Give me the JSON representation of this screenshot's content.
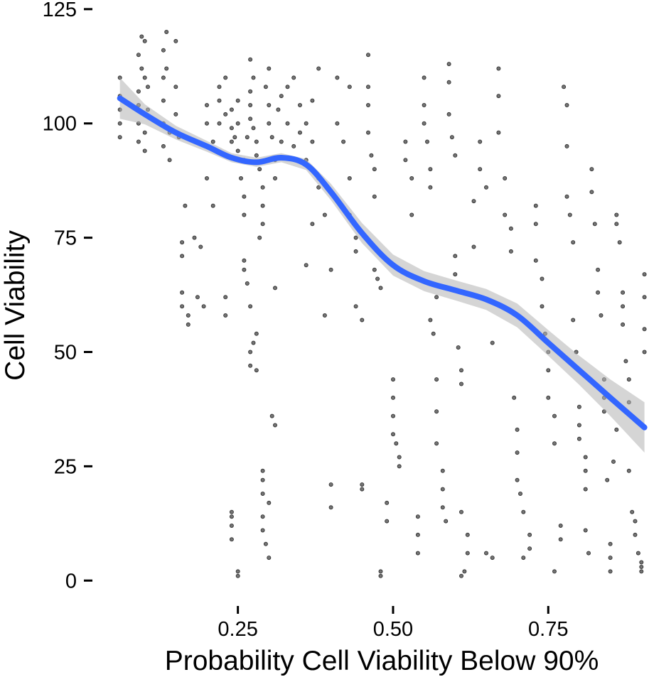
{
  "chart_data": {
    "type": "scatter",
    "xlabel": "Probability Cell Viability Below 90%",
    "ylabel": "Cell Viability",
    "xlim": [
      0.05,
      0.91
    ],
    "ylim": [
      -4,
      127
    ],
    "x_ticks": [
      {
        "value": 0.25,
        "label": "0.25"
      },
      {
        "value": 0.5,
        "label": "0.50"
      },
      {
        "value": 0.75,
        "label": "0.75"
      }
    ],
    "y_ticks": [
      {
        "value": 0,
        "label": "0"
      },
      {
        "value": 25,
        "label": "25"
      },
      {
        "value": 50,
        "label": "50"
      },
      {
        "value": 75,
        "label": "75"
      },
      {
        "value": 100,
        "label": "100"
      },
      {
        "value": 125,
        "label": "125"
      }
    ],
    "grid": false,
    "point_color": "#000000",
    "smooth_color": "#3366ff",
    "band_color": "#b3b3b3",
    "smooth": {
      "x": [
        0.06,
        0.1,
        0.15,
        0.2,
        0.24,
        0.28,
        0.32,
        0.36,
        0.4,
        0.45,
        0.5,
        0.55,
        0.6,
        0.65,
        0.7,
        0.75,
        0.8,
        0.85,
        0.905
      ],
      "y": [
        105.5,
        102.0,
        98.0,
        95.0,
        92.5,
        91.5,
        92.5,
        91.0,
        85.0,
        76.0,
        69.0,
        65.5,
        63.5,
        61.5,
        58.0,
        52.0,
        46.0,
        40.0,
        33.5
      ],
      "band_half_width": [
        4.5,
        2.2,
        1.5,
        1.2,
        1.0,
        1.0,
        1.0,
        1.2,
        1.8,
        2.2,
        2.3,
        2.2,
        2.2,
        2.3,
        2.6,
        2.8,
        3.2,
        4.0,
        5.5
      ]
    },
    "points": [
      [
        0.06,
        97
      ],
      [
        0.06,
        100
      ],
      [
        0.06,
        103
      ],
      [
        0.06,
        106
      ],
      [
        0.06,
        110
      ],
      [
        0.09,
        100
      ],
      [
        0.09,
        104
      ],
      [
        0.09,
        107
      ],
      [
        0.09,
        96
      ],
      [
        0.09,
        115
      ],
      [
        0.095,
        119
      ],
      [
        0.095,
        112
      ],
      [
        0.1,
        118
      ],
      [
        0.1,
        110
      ],
      [
        0.1,
        98
      ],
      [
        0.1,
        94
      ],
      [
        0.105,
        108
      ],
      [
        0.105,
        103
      ],
      [
        0.13,
        116
      ],
      [
        0.13,
        110
      ],
      [
        0.13,
        105
      ],
      [
        0.13,
        100
      ],
      [
        0.13,
        95
      ],
      [
        0.135,
        120
      ],
      [
        0.135,
        112
      ],
      [
        0.14,
        98
      ],
      [
        0.14,
        92
      ],
      [
        0.15,
        118
      ],
      [
        0.15,
        108
      ],
      [
        0.15,
        102
      ],
      [
        0.155,
        97
      ],
      [
        0.16,
        74
      ],
      [
        0.16,
        71
      ],
      [
        0.16,
        63
      ],
      [
        0.16,
        60
      ],
      [
        0.165,
        82
      ],
      [
        0.17,
        56
      ],
      [
        0.17,
        58
      ],
      [
        0.18,
        75
      ],
      [
        0.185,
        62
      ],
      [
        0.19,
        73
      ],
      [
        0.195,
        60
      ],
      [
        0.2,
        100
      ],
      [
        0.2,
        104
      ],
      [
        0.2,
        88
      ],
      [
        0.21,
        82
      ],
      [
        0.21,
        96
      ],
      [
        0.22,
        100
      ],
      [
        0.22,
        105
      ],
      [
        0.22,
        108
      ],
      [
        0.23,
        110
      ],
      [
        0.23,
        102
      ],
      [
        0.23,
        93
      ],
      [
        0.24,
        96
      ],
      [
        0.24,
        99
      ],
      [
        0.24,
        103
      ],
      [
        0.245,
        97
      ],
      [
        0.25,
        100
      ],
      [
        0.25,
        105
      ],
      [
        0.25,
        94
      ],
      [
        0.255,
        88
      ],
      [
        0.26,
        84
      ],
      [
        0.26,
        80
      ],
      [
        0.26,
        92
      ],
      [
        0.265,
        97
      ],
      [
        0.27,
        101
      ],
      [
        0.27,
        104
      ],
      [
        0.27,
        107
      ],
      [
        0.27,
        114
      ],
      [
        0.275,
        110
      ],
      [
        0.275,
        99
      ],
      [
        0.28,
        96
      ],
      [
        0.28,
        93
      ],
      [
        0.285,
        90
      ],
      [
        0.29,
        86
      ],
      [
        0.29,
        82
      ],
      [
        0.29,
        78
      ],
      [
        0.295,
        108
      ],
      [
        0.3,
        112
      ],
      [
        0.3,
        104
      ],
      [
        0.3,
        100
      ],
      [
        0.305,
        97
      ],
      [
        0.31,
        92
      ],
      [
        0.31,
        88
      ],
      [
        0.315,
        103
      ],
      [
        0.32,
        106
      ],
      [
        0.32,
        96
      ],
      [
        0.33,
        100
      ],
      [
        0.33,
        108
      ],
      [
        0.34,
        110
      ],
      [
        0.34,
        95
      ],
      [
        0.35,
        98
      ],
      [
        0.35,
        104
      ],
      [
        0.36,
        92
      ],
      [
        0.36,
        100
      ],
      [
        0.37,
        96
      ],
      [
        0.37,
        105
      ],
      [
        0.38,
        112
      ],
      [
        0.38,
        88
      ],
      [
        0.23,
        62
      ],
      [
        0.23,
        58
      ],
      [
        0.24,
        14
      ],
      [
        0.24,
        12
      ],
      [
        0.24,
        15
      ],
      [
        0.24,
        9
      ],
      [
        0.25,
        2
      ],
      [
        0.25,
        1
      ],
      [
        0.26,
        70
      ],
      [
        0.26,
        68
      ],
      [
        0.265,
        65
      ],
      [
        0.27,
        60
      ],
      [
        0.27,
        50
      ],
      [
        0.27,
        47
      ],
      [
        0.275,
        52
      ],
      [
        0.28,
        46
      ],
      [
        0.28,
        54
      ],
      [
        0.285,
        75
      ],
      [
        0.29,
        24
      ],
      [
        0.29,
        22
      ],
      [
        0.29,
        19
      ],
      [
        0.29,
        14
      ],
      [
        0.29,
        11
      ],
      [
        0.295,
        8
      ],
      [
        0.3,
        5
      ],
      [
        0.3,
        17
      ],
      [
        0.305,
        36
      ],
      [
        0.31,
        34
      ],
      [
        0.31,
        64
      ],
      [
        0.36,
        69
      ],
      [
        0.37,
        78
      ],
      [
        0.38,
        86
      ],
      [
        0.39,
        80
      ],
      [
        0.39,
        58
      ],
      [
        0.4,
        68
      ],
      [
        0.4,
        16
      ],
      [
        0.4,
        21
      ],
      [
        0.41,
        110
      ],
      [
        0.41,
        100
      ],
      [
        0.42,
        96
      ],
      [
        0.43,
        108
      ],
      [
        0.43,
        88
      ],
      [
        0.43,
        80
      ],
      [
        0.44,
        75
      ],
      [
        0.44,
        72
      ],
      [
        0.44,
        60
      ],
      [
        0.45,
        20
      ],
      [
        0.45,
        21
      ],
      [
        0.45,
        57
      ],
      [
        0.46,
        115
      ],
      [
        0.46,
        108
      ],
      [
        0.46,
        104
      ],
      [
        0.46,
        98
      ],
      [
        0.465,
        93
      ],
      [
        0.47,
        90
      ],
      [
        0.47,
        84
      ],
      [
        0.47,
        68
      ],
      [
        0.475,
        66
      ],
      [
        0.48,
        64
      ],
      [
        0.48,
        2
      ],
      [
        0.48,
        1
      ],
      [
        0.49,
        13
      ],
      [
        0.49,
        17
      ],
      [
        0.5,
        44
      ],
      [
        0.5,
        40
      ],
      [
        0.5,
        36
      ],
      [
        0.5,
        32
      ],
      [
        0.505,
        30
      ],
      [
        0.51,
        27
      ],
      [
        0.51,
        25
      ],
      [
        0.52,
        96
      ],
      [
        0.52,
        92
      ],
      [
        0.53,
        88
      ],
      [
        0.53,
        80
      ],
      [
        0.54,
        14
      ],
      [
        0.54,
        6
      ],
      [
        0.54,
        10
      ],
      [
        0.55,
        110
      ],
      [
        0.55,
        104
      ],
      [
        0.55,
        100
      ],
      [
        0.555,
        96
      ],
      [
        0.56,
        90
      ],
      [
        0.56,
        86
      ],
      [
        0.56,
        57
      ],
      [
        0.565,
        54
      ],
      [
        0.57,
        62
      ],
      [
        0.57,
        44
      ],
      [
        0.57,
        37
      ],
      [
        0.57,
        30
      ],
      [
        0.58,
        24
      ],
      [
        0.58,
        20
      ],
      [
        0.58,
        16
      ],
      [
        0.585,
        13
      ],
      [
        0.59,
        113
      ],
      [
        0.59,
        109
      ],
      [
        0.59,
        102
      ],
      [
        0.595,
        97
      ],
      [
        0.6,
        93
      ],
      [
        0.6,
        71
      ],
      [
        0.6,
        67
      ],
      [
        0.605,
        51
      ],
      [
        0.61,
        46
      ],
      [
        0.61,
        43
      ],
      [
        0.61,
        15
      ],
      [
        0.61,
        1
      ],
      [
        0.615,
        2
      ],
      [
        0.62,
        10
      ],
      [
        0.62,
        6
      ],
      [
        0.63,
        83
      ],
      [
        0.63,
        73
      ],
      [
        0.64,
        96
      ],
      [
        0.64,
        90
      ],
      [
        0.65,
        86
      ],
      [
        0.65,
        6
      ],
      [
        0.66,
        5
      ],
      [
        0.66,
        52
      ],
      [
        0.67,
        98
      ],
      [
        0.67,
        106
      ],
      [
        0.67,
        112
      ],
      [
        0.68,
        88
      ],
      [
        0.68,
        80
      ],
      [
        0.69,
        77
      ],
      [
        0.69,
        72
      ],
      [
        0.695,
        40
      ],
      [
        0.7,
        33
      ],
      [
        0.7,
        28
      ],
      [
        0.7,
        22
      ],
      [
        0.705,
        19
      ],
      [
        0.71,
        15
      ],
      [
        0.71,
        5
      ],
      [
        0.72,
        10
      ],
      [
        0.72,
        7
      ],
      [
        0.73,
        78
      ],
      [
        0.73,
        82
      ],
      [
        0.73,
        70
      ],
      [
        0.74,
        66
      ],
      [
        0.74,
        60
      ],
      [
        0.745,
        54
      ],
      [
        0.75,
        50
      ],
      [
        0.75,
        46
      ],
      [
        0.75,
        40
      ],
      [
        0.76,
        36
      ],
      [
        0.76,
        30
      ],
      [
        0.76,
        2
      ],
      [
        0.77,
        9
      ],
      [
        0.77,
        12
      ],
      [
        0.775,
        108
      ],
      [
        0.78,
        104
      ],
      [
        0.78,
        95
      ],
      [
        0.78,
        84
      ],
      [
        0.785,
        80
      ],
      [
        0.79,
        74
      ],
      [
        0.79,
        57
      ],
      [
        0.795,
        50
      ],
      [
        0.8,
        38
      ],
      [
        0.8,
        34
      ],
      [
        0.8,
        31
      ],
      [
        0.81,
        27
      ],
      [
        0.81,
        24
      ],
      [
        0.81,
        20
      ],
      [
        0.81,
        11
      ],
      [
        0.815,
        6
      ],
      [
        0.82,
        90
      ],
      [
        0.82,
        85
      ],
      [
        0.825,
        78
      ],
      [
        0.83,
        68
      ],
      [
        0.83,
        63
      ],
      [
        0.835,
        58
      ],
      [
        0.84,
        44
      ],
      [
        0.84,
        40
      ],
      [
        0.84,
        37
      ],
      [
        0.845,
        22
      ],
      [
        0.85,
        2
      ],
      [
        0.85,
        5
      ],
      [
        0.85,
        8
      ],
      [
        0.855,
        26
      ],
      [
        0.86,
        33
      ],
      [
        0.86,
        78
      ],
      [
        0.86,
        80
      ],
      [
        0.865,
        74
      ],
      [
        0.87,
        63
      ],
      [
        0.87,
        60
      ],
      [
        0.87,
        56
      ],
      [
        0.875,
        48
      ],
      [
        0.88,
        44
      ],
      [
        0.88,
        39
      ],
      [
        0.88,
        24
      ],
      [
        0.885,
        15
      ],
      [
        0.89,
        13
      ],
      [
        0.89,
        10
      ],
      [
        0.895,
        6
      ],
      [
        0.9,
        2
      ],
      [
        0.9,
        3
      ],
      [
        0.9,
        4
      ],
      [
        0.905,
        67
      ],
      [
        0.905,
        62
      ],
      [
        0.905,
        55
      ],
      [
        0.905,
        50
      ]
    ]
  }
}
